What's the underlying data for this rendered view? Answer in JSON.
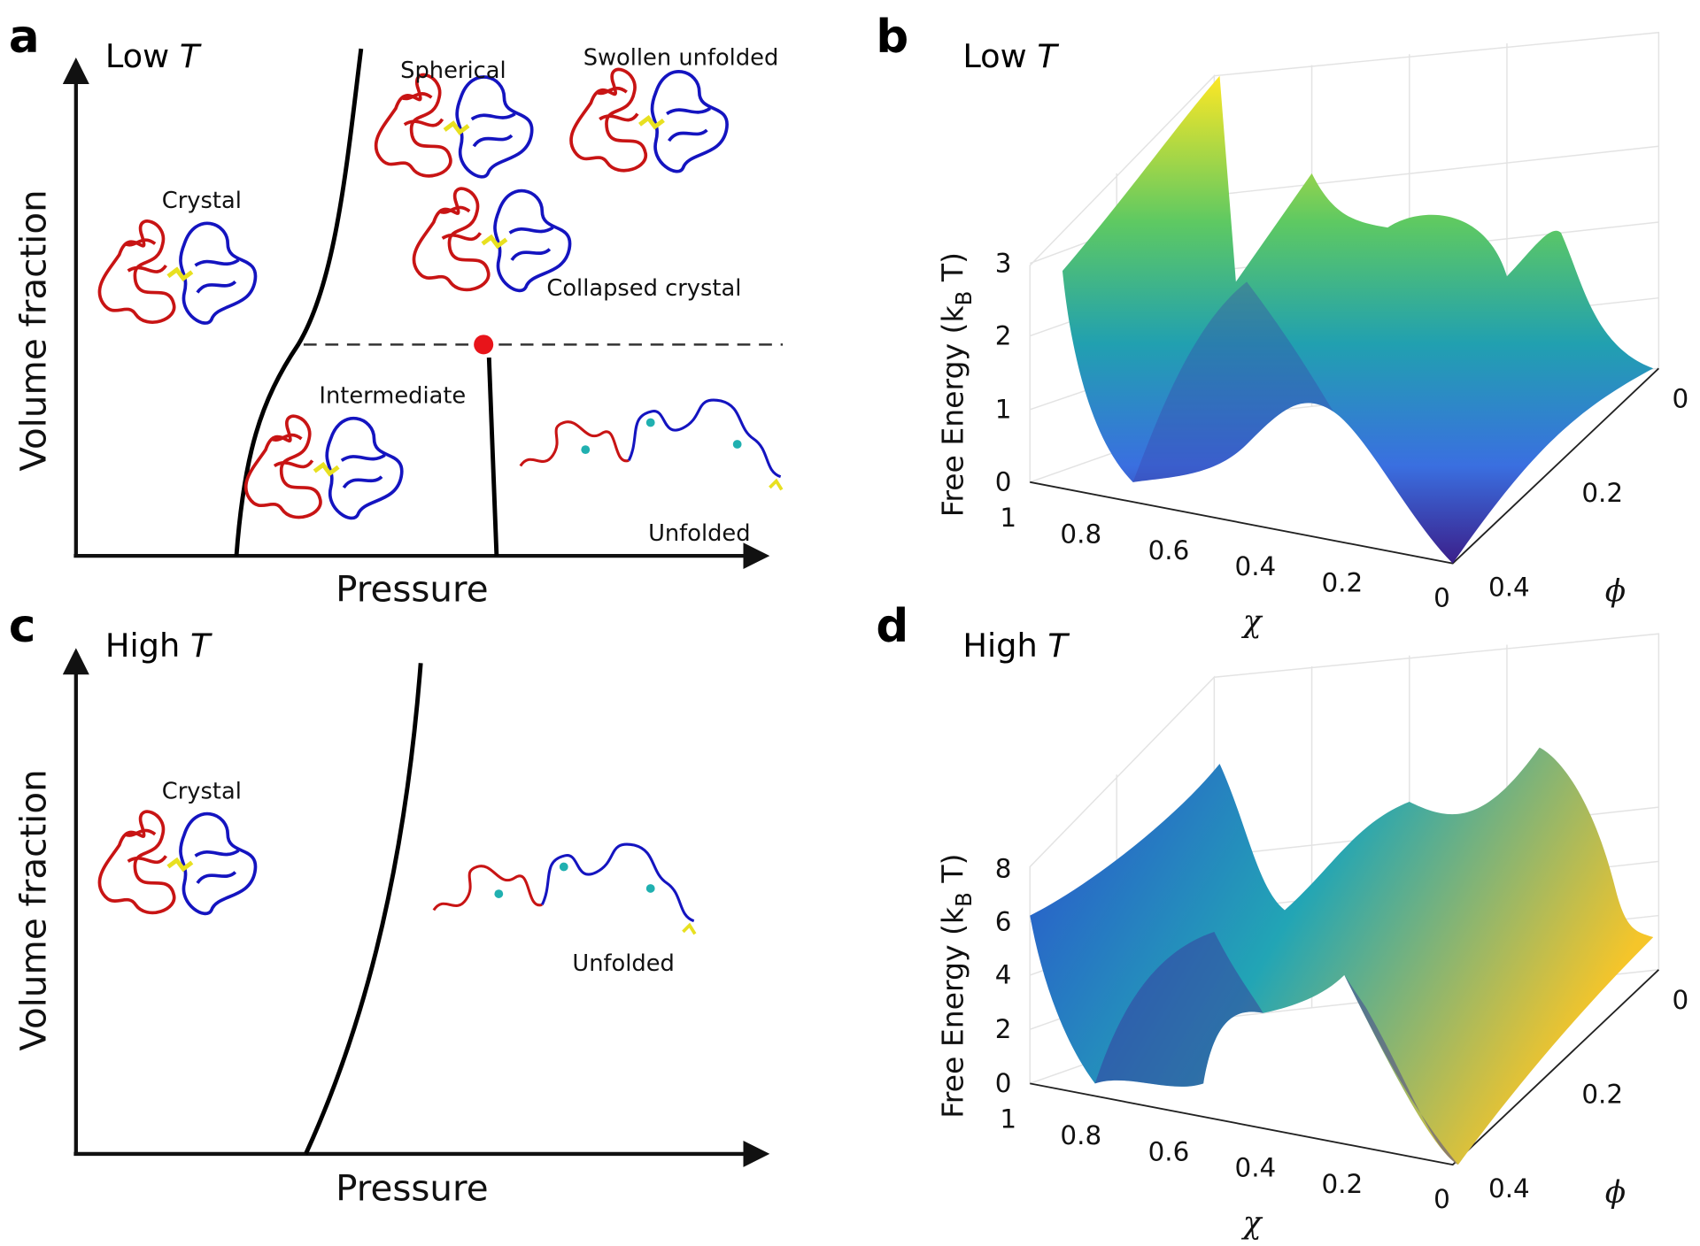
{
  "panel_a": {
    "letter": "a",
    "title": "Low",
    "title_var": "T",
    "y_label": "Volume fraction",
    "x_label": "Pressure",
    "labels": [
      "Spherical",
      "Swollen unfolded",
      "Crystal",
      "Collapsed crystal",
      "Intermediate",
      "Unfolded"
    ]
  },
  "panel_b": {
    "letter": "b",
    "title": "Low",
    "title_var": "T",
    "z_label": "Free Energy (k",
    "z_label_sub": "B",
    "z_label_end": " T)",
    "z_ticks": [
      0,
      1,
      2,
      3
    ],
    "x_label": "χ",
    "x_ticks": [
      1,
      0.8,
      0.6,
      0.4,
      0.2,
      0
    ],
    "y_label": "ϕ",
    "y_ticks": [
      0,
      0.2,
      0.4
    ]
  },
  "panel_c": {
    "letter": "c",
    "title": "High",
    "title_var": "T",
    "y_label": "Volume fraction",
    "x_label": "Pressure",
    "labels": [
      "Crystal",
      "Unfolded"
    ]
  },
  "panel_d": {
    "letter": "d",
    "title": "High",
    "title_var": "T",
    "z_label": "Free Energy (k",
    "z_label_sub": "B",
    "z_label_end": " T)",
    "z_ticks": [
      0,
      2,
      4,
      6,
      8
    ],
    "x_label": "χ",
    "x_ticks": [
      1,
      0.8,
      0.6,
      0.4,
      0.2,
      0
    ],
    "y_label": "ϕ",
    "y_ticks": [
      0,
      0.2,
      0.4
    ]
  }
}
